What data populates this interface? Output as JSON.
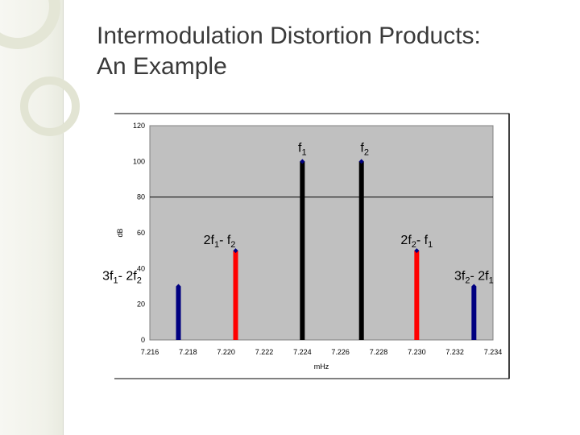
{
  "slide": {
    "title_line1": "Intermodulation Distortion Products:",
    "title_line2": "An Example"
  },
  "colors": {
    "plot_background": "#c0c0c0",
    "fundamental": "#000000",
    "third_order": "#ff0000",
    "fifth_order": "#000080"
  },
  "chart_data": {
    "type": "bar",
    "xlabel": "mHz",
    "ylabel": "dB",
    "xlim": [
      7.216,
      7.234
    ],
    "ylim": [
      0,
      120
    ],
    "grid": "horizontal line at 80",
    "x_ticks": [
      "7.216",
      "7.218",
      "7.220",
      "7.222",
      "7.224",
      "7.226",
      "7.228",
      "7.230",
      "7.232",
      "7.234"
    ],
    "y_ticks": [
      "120",
      "100",
      "80",
      "60",
      "40",
      "20",
      "0"
    ],
    "series": [
      {
        "label_main": "3f",
        "sub1": "1",
        "op": "- 2f",
        "sub2": "2",
        "x": 7.2175,
        "y": 30,
        "color": "#000080",
        "label_pos": "left"
      },
      {
        "label_main": "2f",
        "sub1": "1",
        "op": "- f",
        "sub2": "2",
        "x": 7.2205,
        "y": 50,
        "color": "#ff0000",
        "label_pos": "left"
      },
      {
        "label_main": "f",
        "sub1": "1",
        "op": "",
        "sub2": "",
        "x": 7.224,
        "y": 100,
        "color": "#000000",
        "label_pos": "center"
      },
      {
        "label_main": "f",
        "sub1": "2",
        "op": "",
        "sub2": "",
        "x": 7.2271,
        "y": 100,
        "color": "#000000",
        "label_pos": "center"
      },
      {
        "label_main": "2f",
        "sub1": "2",
        "op": "- f",
        "sub2": "1",
        "x": 7.23,
        "y": 50,
        "color": "#ff0000",
        "label_pos": "center"
      },
      {
        "label_main": "3f",
        "sub1": "2",
        "op": "- 2f",
        "sub2": "1",
        "x": 7.233,
        "y": 30,
        "color": "#000080",
        "label_pos": "right"
      }
    ]
  }
}
